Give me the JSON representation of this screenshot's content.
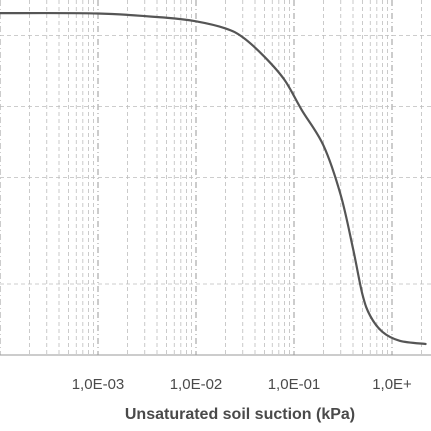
{
  "chart_data": {
    "type": "line",
    "title": "",
    "xlabel": "Unsaturated soil suction (kPa)",
    "ylabel": "",
    "x_scale": "log",
    "xlim": [
      0.0001,
      2.5
    ],
    "ylim": [
      0,
      1
    ],
    "grid": true,
    "x_tick_labels": [
      {
        "value": 0.001,
        "label": "1,0E-03"
      },
      {
        "value": 0.01,
        "label": "1,0E-02"
      },
      {
        "value": 0.1,
        "label": "1,0E-01"
      },
      {
        "value": 1,
        "label": "1,0E+"
      }
    ],
    "series": [
      {
        "color": "#555555",
        "points": [
          {
            "x": 0.0001,
            "y": 0.963
          },
          {
            "x": 0.001,
            "y": 0.962
          },
          {
            "x": 0.005,
            "y": 0.95
          },
          {
            "x": 0.01,
            "y": 0.94
          },
          {
            "x": 0.02,
            "y": 0.92
          },
          {
            "x": 0.03,
            "y": 0.895
          },
          {
            "x": 0.05,
            "y": 0.84
          },
          {
            "x": 0.08,
            "y": 0.775
          },
          {
            "x": 0.12,
            "y": 0.69
          },
          {
            "x": 0.2,
            "y": 0.59
          },
          {
            "x": 0.3,
            "y": 0.45
          },
          {
            "x": 0.4,
            "y": 0.3
          },
          {
            "x": 0.5,
            "y": 0.17
          },
          {
            "x": 0.6,
            "y": 0.11
          },
          {
            "x": 0.8,
            "y": 0.065
          },
          {
            "x": 1.2,
            "y": 0.04
          },
          {
            "x": 2.2,
            "y": 0.031
          }
        ]
      }
    ]
  }
}
